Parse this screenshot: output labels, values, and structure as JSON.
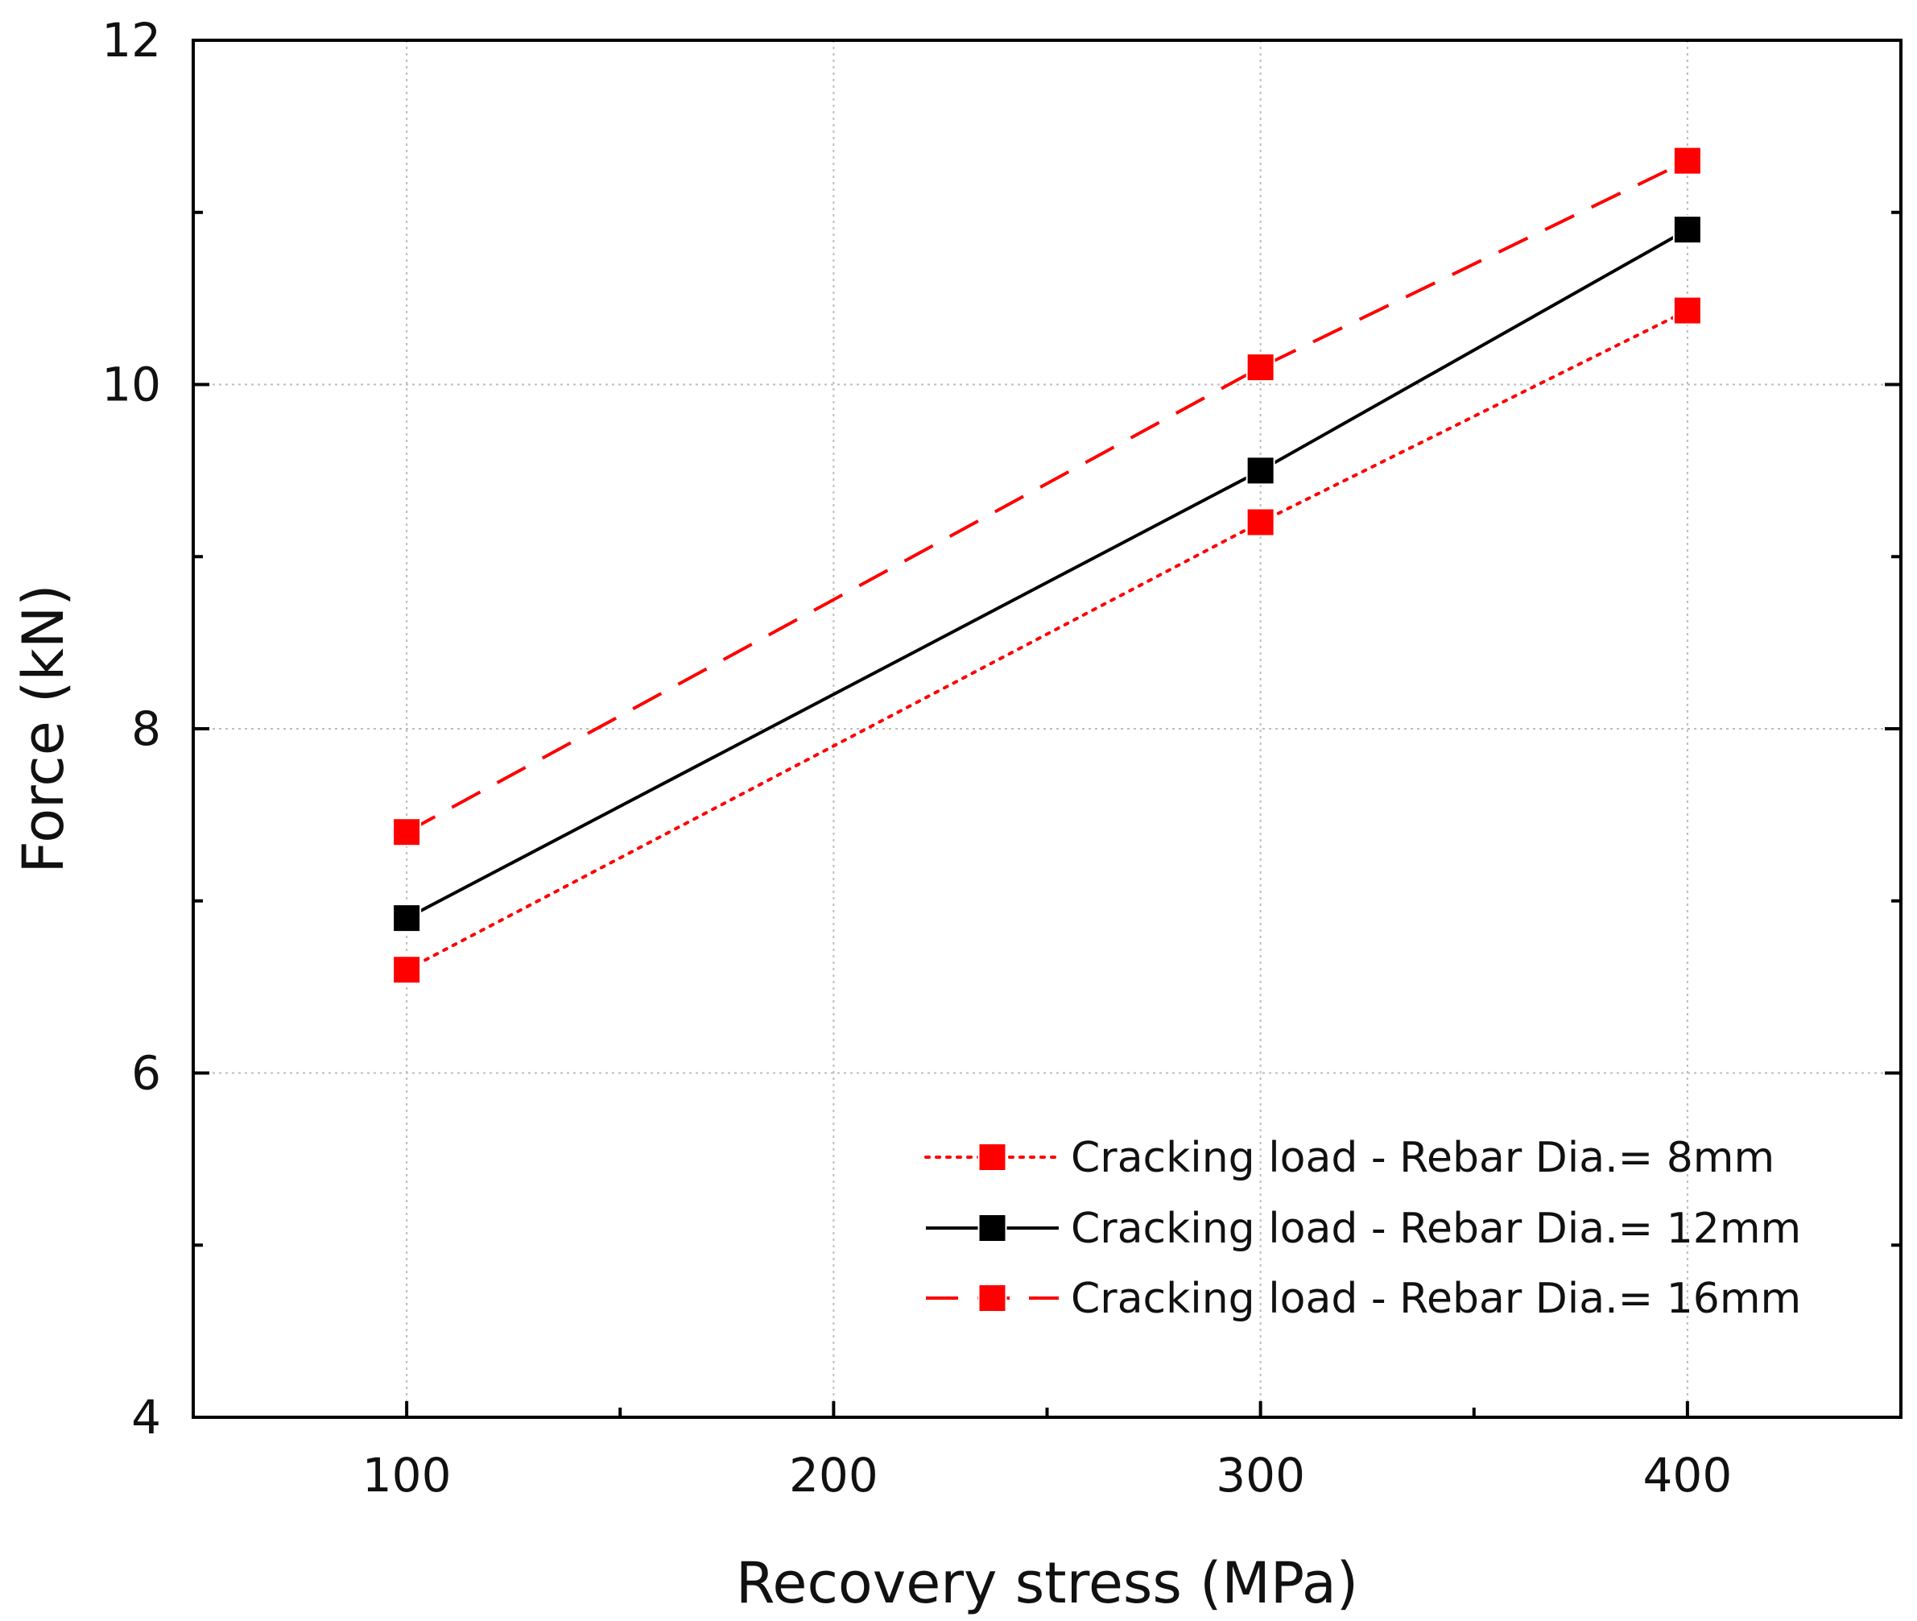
{
  "chart_data": {
    "type": "line",
    "xlabel": "Recovery stress (MPa)",
    "ylabel": "Force (kN)",
    "xlim": [
      50,
      450
    ],
    "ylim": [
      4,
      12
    ],
    "xticks": [
      100,
      200,
      300,
      400
    ],
    "yticks": [
      4,
      6,
      8,
      10,
      12
    ],
    "x_minor_ticks": [
      150,
      250,
      350
    ],
    "y_minor_ticks": [
      5,
      7,
      9,
      11
    ],
    "grid": true,
    "legend_position": "bottom-right",
    "series": [
      {
        "name": "Cracking load - Rebar Dia.= 8mm",
        "x": [
          100,
          300,
          400
        ],
        "y": [
          6.6,
          9.2,
          10.43
        ],
        "color": "#ff0000",
        "line_style": "dotted",
        "marker": "square"
      },
      {
        "name": "Cracking load - Rebar Dia.= 12mm",
        "x": [
          100,
          300,
          400
        ],
        "y": [
          6.9,
          9.5,
          10.9
        ],
        "color": "#000000",
        "line_style": "solid",
        "marker": "square"
      },
      {
        "name": "Cracking load - Rebar Dia.= 16mm",
        "x": [
          100,
          300,
          400
        ],
        "y": [
          7.4,
          10.1,
          11.3
        ],
        "color": "#ff0000",
        "line_style": "dashed",
        "marker": "square"
      }
    ]
  }
}
